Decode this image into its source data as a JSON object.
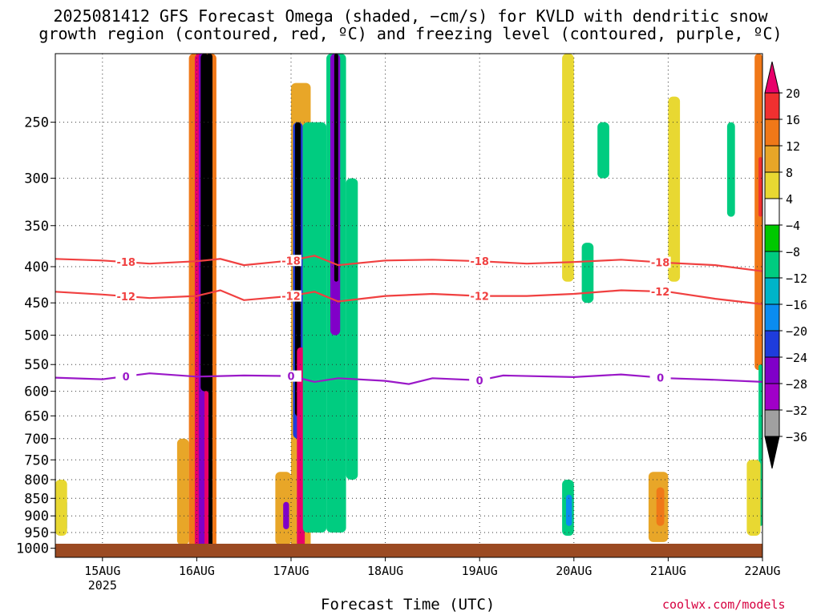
{
  "title_line1": "2025081412 GFS Forecast Omega (shaded, −cm/s) for KVLD with dendritic snow",
  "title_line2": "growth region (contoured, red, ºC) and freezing level (contoured, purple, ºC)",
  "xlabel": "Forecast Time (UTC)",
  "credit": "coolwx.com/models",
  "chart_data": {
    "type": "heatmap",
    "title": "2025081412 GFS Forecast Omega (shaded, −cm/s) for KVLD with dendritic snow growth region (contoured, red, ºC) and freezing level (contoured, purple, ºC)",
    "xlabel": "Forecast Time (UTC)",
    "ylabel": "",
    "y_axis_log": true,
    "y_inverted": true,
    "ylim": [
      1030,
      200
    ],
    "xlim": [
      "2025-08-14T12:00",
      "2025-08-22T00:00"
    ],
    "grid": true,
    "x_ticks": [
      {
        "t": "2025-08-15T00:00",
        "label": "15AUG",
        "sub": "2025"
      },
      {
        "t": "2025-08-16T00:00",
        "label": "16AUG",
        "sub": ""
      },
      {
        "t": "2025-08-17T00:00",
        "label": "17AUG",
        "sub": ""
      },
      {
        "t": "2025-08-18T00:00",
        "label": "18AUG",
        "sub": ""
      },
      {
        "t": "2025-08-19T00:00",
        "label": "19AUG",
        "sub": ""
      },
      {
        "t": "2025-08-20T00:00",
        "label": "20AUG",
        "sub": ""
      },
      {
        "t": "2025-08-21T00:00",
        "label": "21AUG",
        "sub": ""
      },
      {
        "t": "2025-08-22T00:00",
        "label": "22AUG",
        "sub": ""
      }
    ],
    "y_ticks": [
      250,
      300,
      350,
      400,
      450,
      500,
      550,
      600,
      650,
      700,
      750,
      800,
      850,
      900,
      950,
      1000
    ],
    "colorbar": {
      "labels": [
        "20",
        "16",
        "12",
        "8",
        "4",
        "−4",
        "−8",
        "−12",
        "−16",
        "−20",
        "−24",
        "−28",
        "−32",
        "−36"
      ],
      "colors": [
        "#e8006a",
        "#f03030",
        "#f07818",
        "#e8a628",
        "#e8d832",
        "#ffffff",
        "#00c800",
        "#00cc80",
        "#00b4c8",
        "#0a8cf0",
        "#1e3cdc",
        "#8000c8",
        "#a000c8",
        "#a0a0a0",
        "#000000"
      ]
    },
    "contours": [
      {
        "label": "-18",
        "color": "#f04040",
        "points": [
          [
            "2025-08-14T12:00",
            390
          ],
          [
            "2025-08-15T00:00",
            392
          ],
          [
            "2025-08-15T12:00",
            396
          ],
          [
            "2025-08-16T00:00",
            393
          ],
          [
            "2025-08-16T06:00",
            390
          ],
          [
            "2025-08-16T12:00",
            398
          ],
          [
            "2025-08-17T00:00",
            392
          ],
          [
            "2025-08-17T06:00",
            386
          ],
          [
            "2025-08-17T12:00",
            398
          ],
          [
            "2025-08-18T00:00",
            392
          ],
          [
            "2025-08-18T12:00",
            391
          ],
          [
            "2025-08-19T00:00",
            393
          ],
          [
            "2025-08-19T12:00",
            396
          ],
          [
            "2025-08-20T00:00",
            394
          ],
          [
            "2025-08-20T12:00",
            391
          ],
          [
            "2025-08-21T00:00",
            395
          ],
          [
            "2025-08-21T12:00",
            398
          ],
          [
            "2025-08-22T00:00",
            406
          ]
        ]
      },
      {
        "label": "-12",
        "color": "#f04040",
        "points": [
          [
            "2025-08-14T12:00",
            434
          ],
          [
            "2025-08-15T00:00",
            438
          ],
          [
            "2025-08-15T12:00",
            443
          ],
          [
            "2025-08-16T00:00",
            440
          ],
          [
            "2025-08-16T06:00",
            432
          ],
          [
            "2025-08-16T12:00",
            446
          ],
          [
            "2025-08-17T00:00",
            440
          ],
          [
            "2025-08-17T06:00",
            434
          ],
          [
            "2025-08-17T12:00",
            448
          ],
          [
            "2025-08-18T00:00",
            440
          ],
          [
            "2025-08-18T12:00",
            437
          ],
          [
            "2025-08-19T00:00",
            440
          ],
          [
            "2025-08-19T12:00",
            440
          ],
          [
            "2025-08-20T00:00",
            437
          ],
          [
            "2025-08-20T12:00",
            432
          ],
          [
            "2025-08-21T00:00",
            434
          ],
          [
            "2025-08-21T12:00",
            444
          ],
          [
            "2025-08-22T00:00",
            452
          ]
        ]
      },
      {
        "label": "0",
        "color": "#9a18c8",
        "points": [
          [
            "2025-08-14T12:00",
            574
          ],
          [
            "2025-08-15T00:00",
            577
          ],
          [
            "2025-08-15T12:00",
            566
          ],
          [
            "2025-08-16T00:00",
            572
          ],
          [
            "2025-08-16T12:00",
            570
          ],
          [
            "2025-08-17T00:00",
            571
          ],
          [
            "2025-08-17T06:00",
            582
          ],
          [
            "2025-08-17T12:00",
            575
          ],
          [
            "2025-08-18T00:00",
            580
          ],
          [
            "2025-08-18T06:00",
            586
          ],
          [
            "2025-08-18T12:00",
            575
          ],
          [
            "2025-08-19T00:00",
            579
          ],
          [
            "2025-08-19T06:00",
            570
          ],
          [
            "2025-08-20T00:00",
            573
          ],
          [
            "2025-08-20T12:00",
            568
          ],
          [
            "2025-08-21T00:00",
            575
          ],
          [
            "2025-08-21T12:00",
            578
          ],
          [
            "2025-08-22T00:00",
            582
          ]
        ]
      }
    ],
    "cells": [
      {
        "t0": "2025-08-15T22:00",
        "t1": "2025-08-16T05:00",
        "p0": 200,
        "p1": 1015,
        "level": "12"
      },
      {
        "t0": "2025-08-15T23:30",
        "t1": "2025-08-16T02:30",
        "p0": 200,
        "p1": 1015,
        "level": "20"
      },
      {
        "t0": "2025-08-16T00:30",
        "t1": "2025-08-16T02:00",
        "p0": 200,
        "p1": 1010,
        "level": "-24"
      },
      {
        "t0": "2025-08-16T01:00",
        "t1": "2025-08-16T03:00",
        "p0": 200,
        "p1": 600,
        "level": "-36"
      },
      {
        "t0": "2025-08-16T02:30",
        "t1": "2025-08-16T04:00",
        "p0": 200,
        "p1": 1010,
        "level": "-36"
      },
      {
        "t0": "2025-08-16T02:00",
        "t1": "2025-08-16T03:00",
        "p0": 600,
        "p1": 1015,
        "level": "20"
      },
      {
        "t0": "2025-08-17T00:00",
        "t1": "2025-08-17T05:00",
        "p0": 220,
        "p1": 1012,
        "level": "8"
      },
      {
        "t0": "2025-08-17T00:30",
        "t1": "2025-08-17T03:00",
        "p0": 250,
        "p1": 700,
        "level": "-20"
      },
      {
        "t0": "2025-08-17T01:00",
        "t1": "2025-08-17T02:30",
        "p0": 250,
        "p1": 650,
        "level": "-36"
      },
      {
        "t0": "2025-08-17T01:30",
        "t1": "2025-08-17T03:30",
        "p0": 520,
        "p1": 1012,
        "level": "20"
      },
      {
        "t0": "2025-08-17T03:00",
        "t1": "2025-08-17T09:00",
        "p0": 250,
        "p1": 950,
        "level": "-8"
      },
      {
        "t0": "2025-08-17T09:00",
        "t1": "2025-08-17T14:00",
        "p0": 200,
        "p1": 950,
        "level": "-8"
      },
      {
        "t0": "2025-08-17T10:00",
        "t1": "2025-08-17T12:30",
        "p0": 200,
        "p1": 500,
        "level": "-24"
      },
      {
        "t0": "2025-08-17T11:00",
        "t1": "2025-08-17T12:00",
        "p0": 200,
        "p1": 420,
        "level": "-36"
      },
      {
        "t0": "2025-08-17T14:00",
        "t1": "2025-08-17T17:00",
        "p0": 300,
        "p1": 800,
        "level": "-8"
      },
      {
        "t0": "2025-08-14T12:00",
        "t1": "2025-08-14T15:00",
        "p0": 850,
        "p1": 950,
        "level": "-16"
      },
      {
        "t0": "2025-08-14T12:00",
        "t1": "2025-08-14T15:00",
        "p0": 800,
        "p1": 960,
        "level": "4"
      },
      {
        "t0": "2025-08-15T19:00",
        "t1": "2025-08-15T22:00",
        "p0": 700,
        "p1": 990,
        "level": "8"
      },
      {
        "t0": "2025-08-16T20:00",
        "t1": "2025-08-17T00:00",
        "p0": 780,
        "p1": 990,
        "level": "8"
      },
      {
        "t0": "2025-08-16T22:00",
        "t1": "2025-08-16T23:30",
        "p0": 860,
        "p1": 940,
        "level": "-24"
      },
      {
        "t0": "2025-08-19T21:00",
        "t1": "2025-08-20T00:00",
        "p0": 800,
        "p1": 960,
        "level": "-8"
      },
      {
        "t0": "2025-08-19T22:00",
        "t1": "2025-08-19T23:30",
        "p0": 840,
        "p1": 930,
        "level": "-16"
      },
      {
        "t0": "2025-08-20T19:00",
        "t1": "2025-08-21T00:00",
        "p0": 780,
        "p1": 980,
        "level": "8"
      },
      {
        "t0": "2025-08-20T21:00",
        "t1": "2025-08-20T23:00",
        "p0": 820,
        "p1": 930,
        "level": "12"
      },
      {
        "t0": "2025-08-19T21:00",
        "t1": "2025-08-20T00:00",
        "p0": 200,
        "p1": 420,
        "level": "4"
      },
      {
        "t0": "2025-08-20T06:00",
        "t1": "2025-08-20T09:00",
        "p0": 250,
        "p1": 300,
        "level": "-8"
      },
      {
        "t0": "2025-08-20T02:00",
        "t1": "2025-08-20T05:00",
        "p0": 370,
        "p1": 450,
        "level": "-8"
      },
      {
        "t0": "2025-08-21T00:00",
        "t1": "2025-08-21T03:00",
        "p0": 230,
        "p1": 420,
        "level": "4"
      },
      {
        "t0": "2025-08-21T15:00",
        "t1": "2025-08-21T17:00",
        "p0": 250,
        "p1": 340,
        "level": "-8"
      },
      {
        "t0": "2025-08-21T22:00",
        "t1": "2025-08-22T00:00",
        "p0": 200,
        "p1": 560,
        "level": "12"
      },
      {
        "t0": "2025-08-21T23:00",
        "t1": "2025-08-22T00:00",
        "p0": 280,
        "p1": 340,
        "level": "16"
      },
      {
        "t0": "2025-08-21T23:00",
        "t1": "2025-08-22T00:00",
        "p0": 550,
        "p1": 930,
        "level": "-8"
      },
      {
        "t0": "2025-08-21T20:00",
        "t1": "2025-08-21T23:30",
        "p0": 750,
        "p1": 960,
        "level": "4"
      }
    ]
  }
}
